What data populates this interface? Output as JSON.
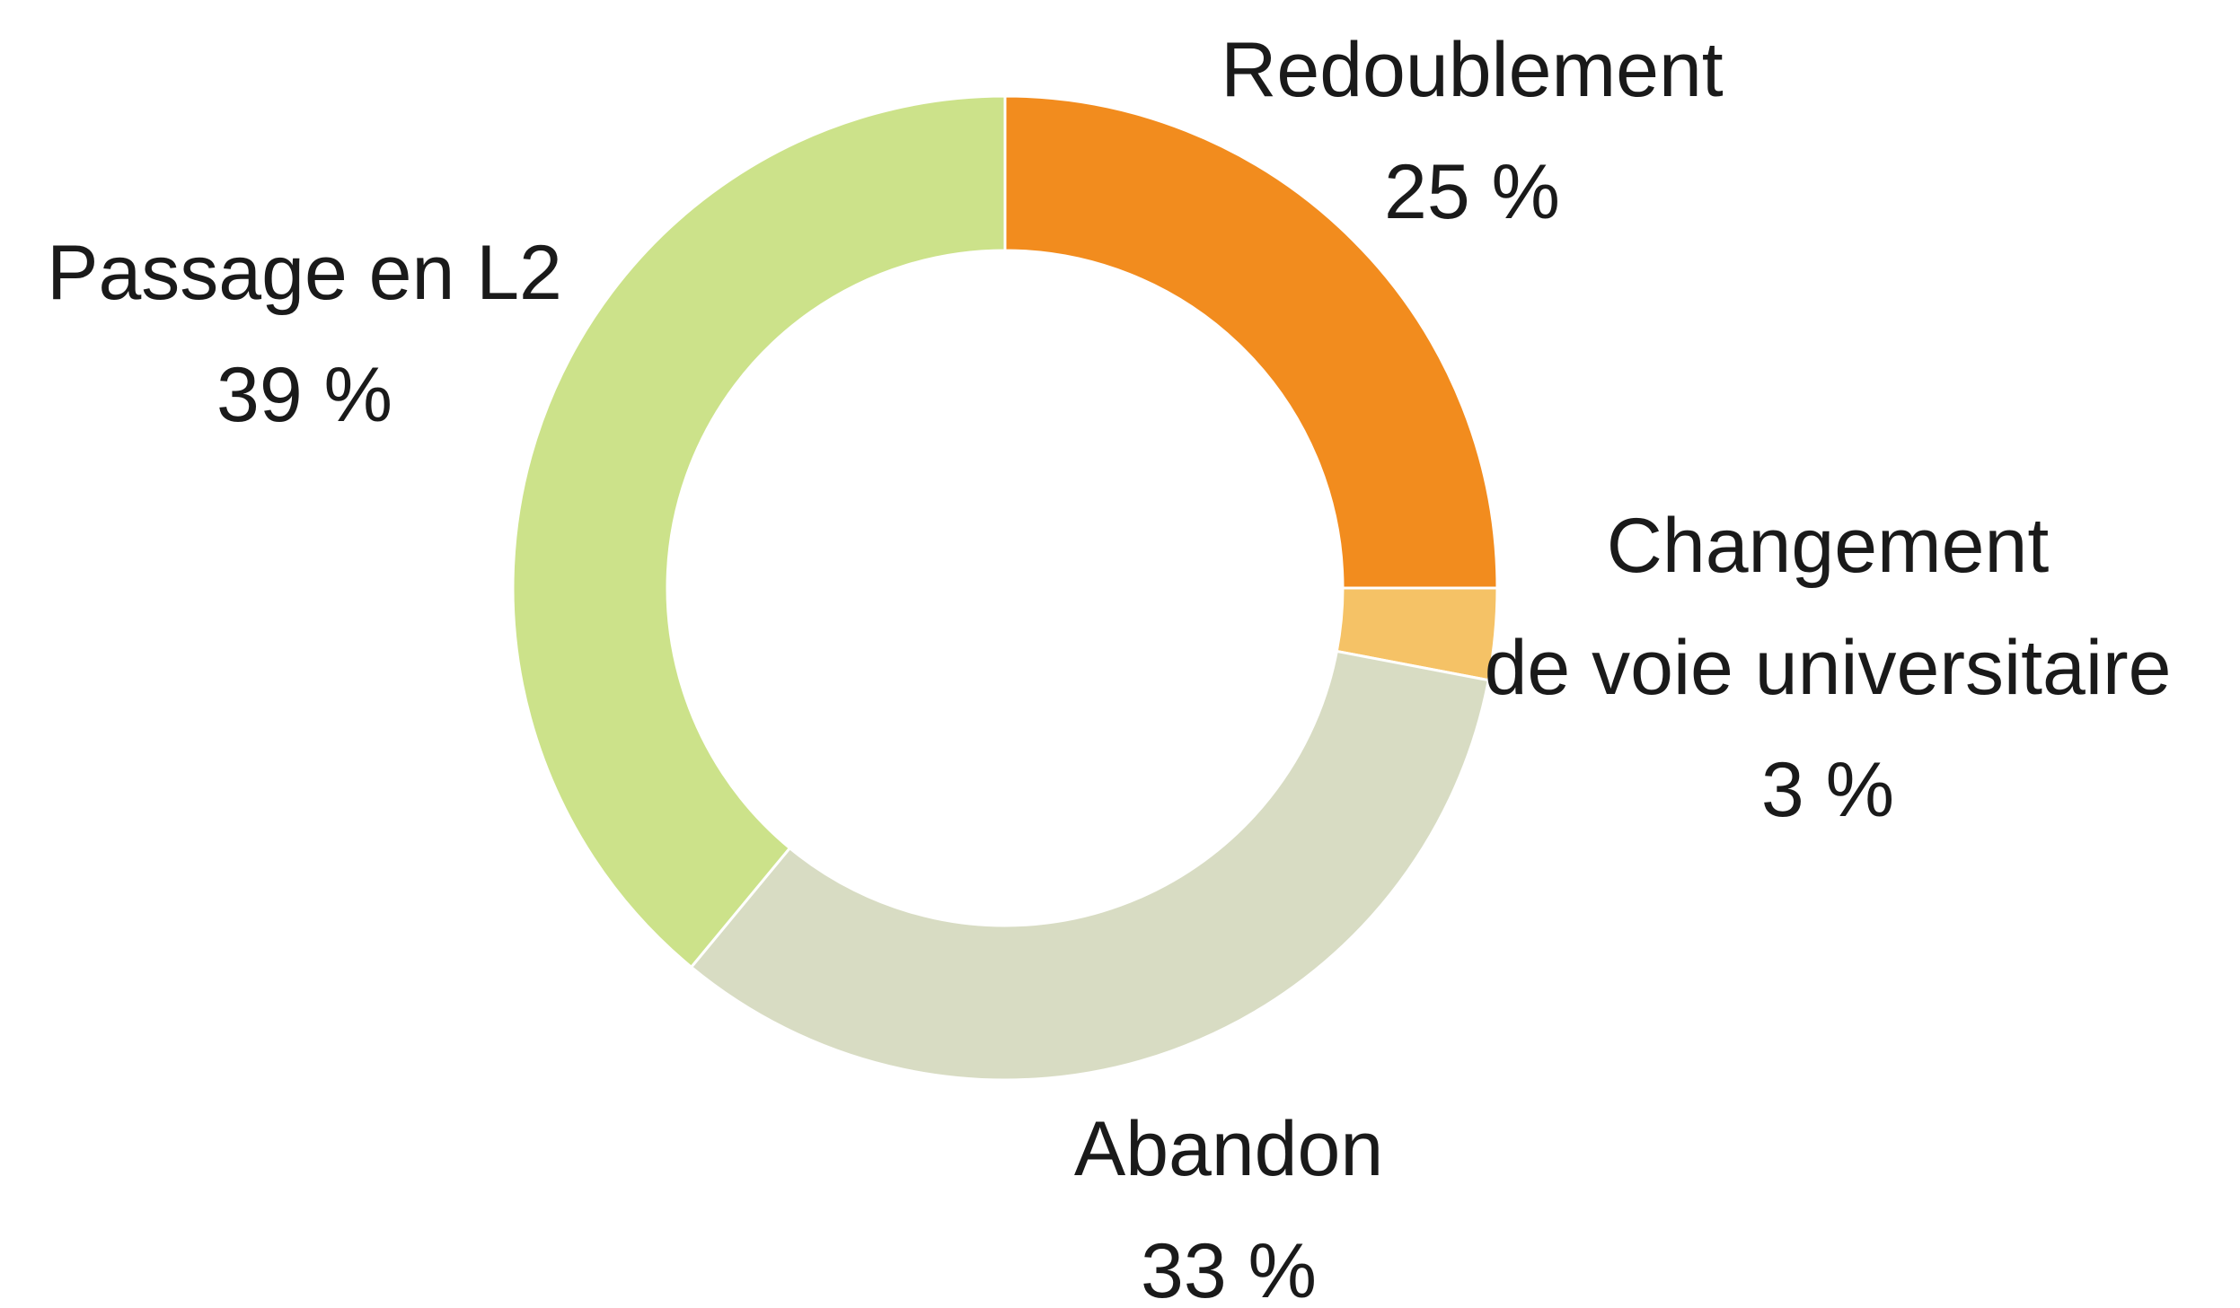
{
  "chart_data": {
    "type": "donut",
    "categories": [
      "Redoublement",
      "Changement\nde voie universitaire",
      "Abandon",
      "Passage en L2"
    ],
    "values": [
      25,
      3,
      33,
      39
    ],
    "value_labels": [
      "25 %",
      "3 %",
      "33 %",
      "39 %"
    ],
    "colors": [
      "#f28c1e",
      "#f5c266",
      "#d8dcc3",
      "#cce28a"
    ]
  }
}
